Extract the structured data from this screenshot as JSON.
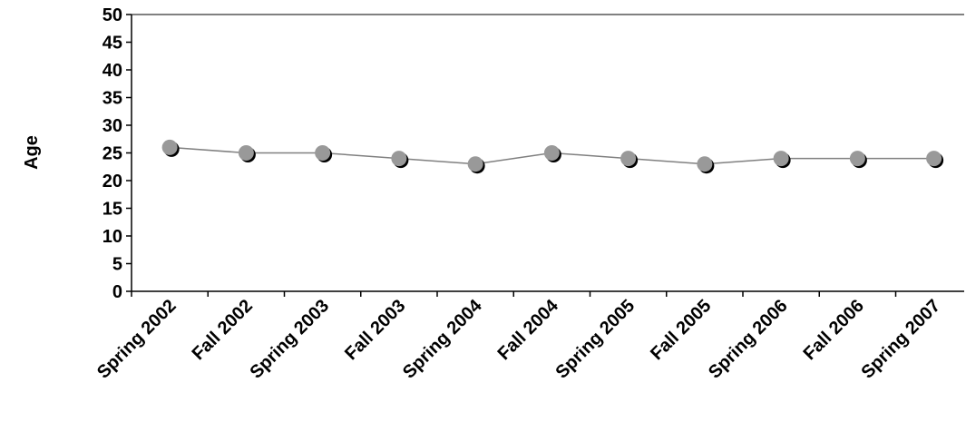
{
  "chart_data": {
    "type": "line",
    "title": "",
    "xlabel": "",
    "ylabel": "Age",
    "categories": [
      "Spring 2002",
      "Fall 2002",
      "Spring 2003",
      "Fall 2003",
      "Spring 2004",
      "Fall 2004",
      "Spring 2005",
      "Fall 2005",
      "Spring 2006",
      "Fall 2006",
      "Spring 2007"
    ],
    "series": [
      {
        "values": [
          26,
          25,
          25,
          24,
          23,
          25,
          24,
          23,
          24,
          24,
          24
        ]
      }
    ],
    "ylim": [
      0,
      50
    ],
    "yticks": [
      "0",
      "5",
      "10",
      "15",
      "20",
      "25",
      "30",
      "35",
      "40",
      "45",
      "50"
    ],
    "grid": false,
    "legend": "none",
    "colors": {
      "line": "#808080",
      "marker": "#999999",
      "marker_shadow": "#000000",
      "axis": "#000000"
    }
  }
}
